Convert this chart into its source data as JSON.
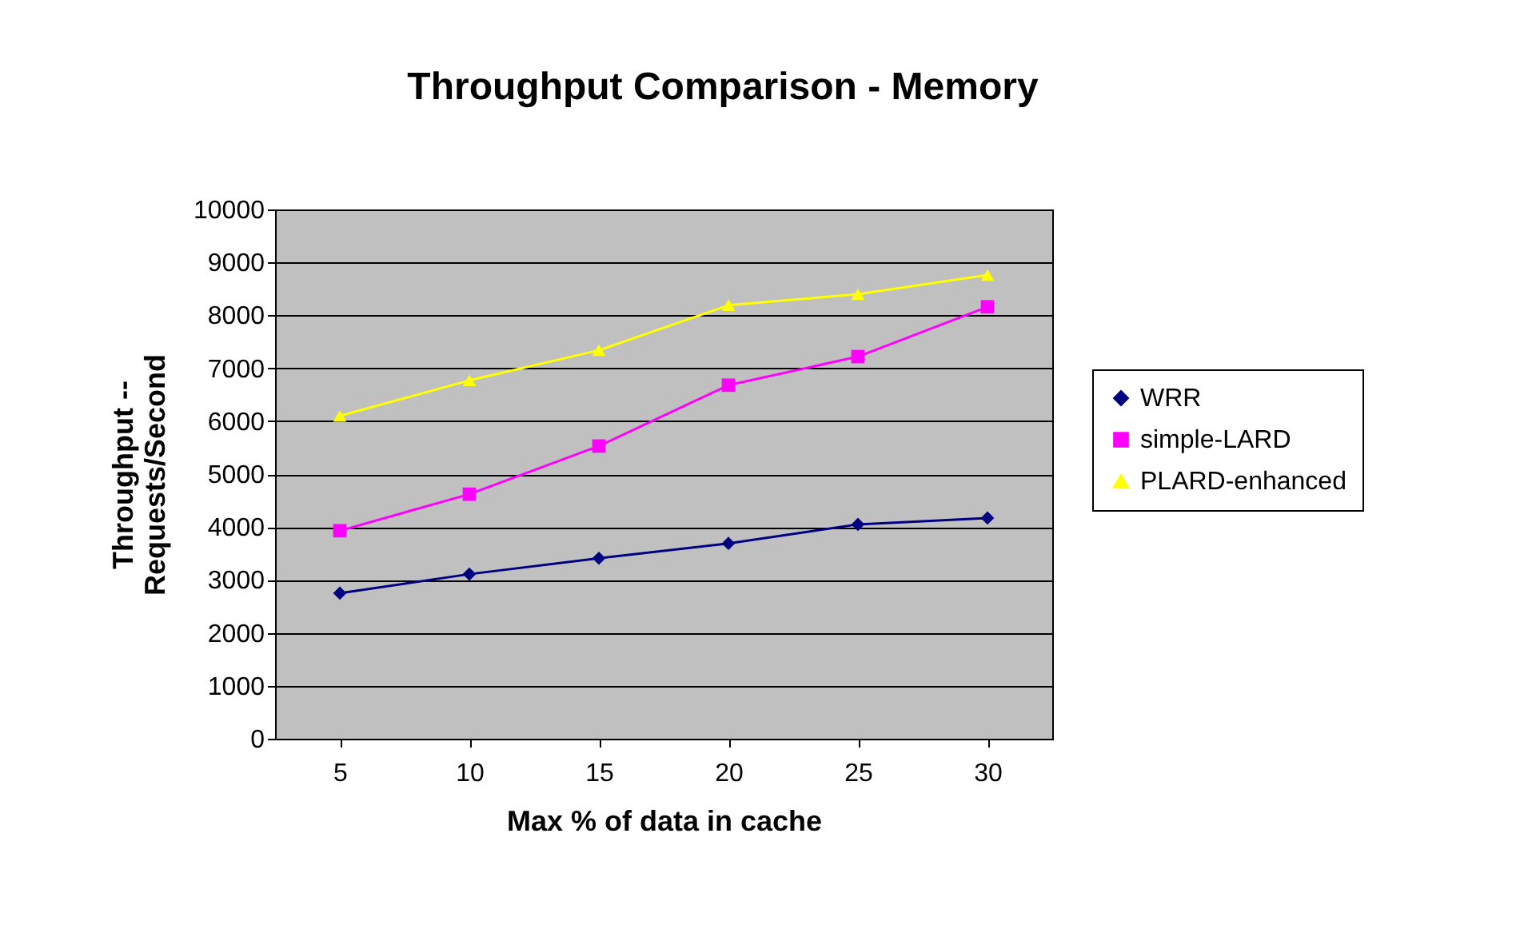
{
  "chart_data": {
    "type": "line",
    "title": "Throughput Comparison - Memory",
    "xlabel": "Max % of data in cache",
    "ylabel": "Throughput -- Requests/Second",
    "categories": [
      "5",
      "10",
      "15",
      "20",
      "25",
      "30"
    ],
    "series": [
      {
        "name": "WRR",
        "color": "#000080",
        "marker": "diamond",
        "values": [
          2750,
          3110,
          3410,
          3690,
          4050,
          4170
        ]
      },
      {
        "name": "simple-LARD",
        "color": "#ff00ff",
        "marker": "square",
        "values": [
          3930,
          4620,
          5530,
          6680,
          7220,
          8160
        ]
      },
      {
        "name": "PLARD-enhanced",
        "color": "#ffff00",
        "marker": "triangle",
        "values": [
          6100,
          6770,
          7340,
          8190,
          8400,
          8760
        ]
      }
    ],
    "ylim": [
      0,
      10000
    ],
    "yticks": [
      0,
      1000,
      2000,
      3000,
      4000,
      5000,
      6000,
      7000,
      8000,
      9000,
      10000
    ],
    "grid": "y",
    "legend": "right",
    "line_style": "solid"
  }
}
